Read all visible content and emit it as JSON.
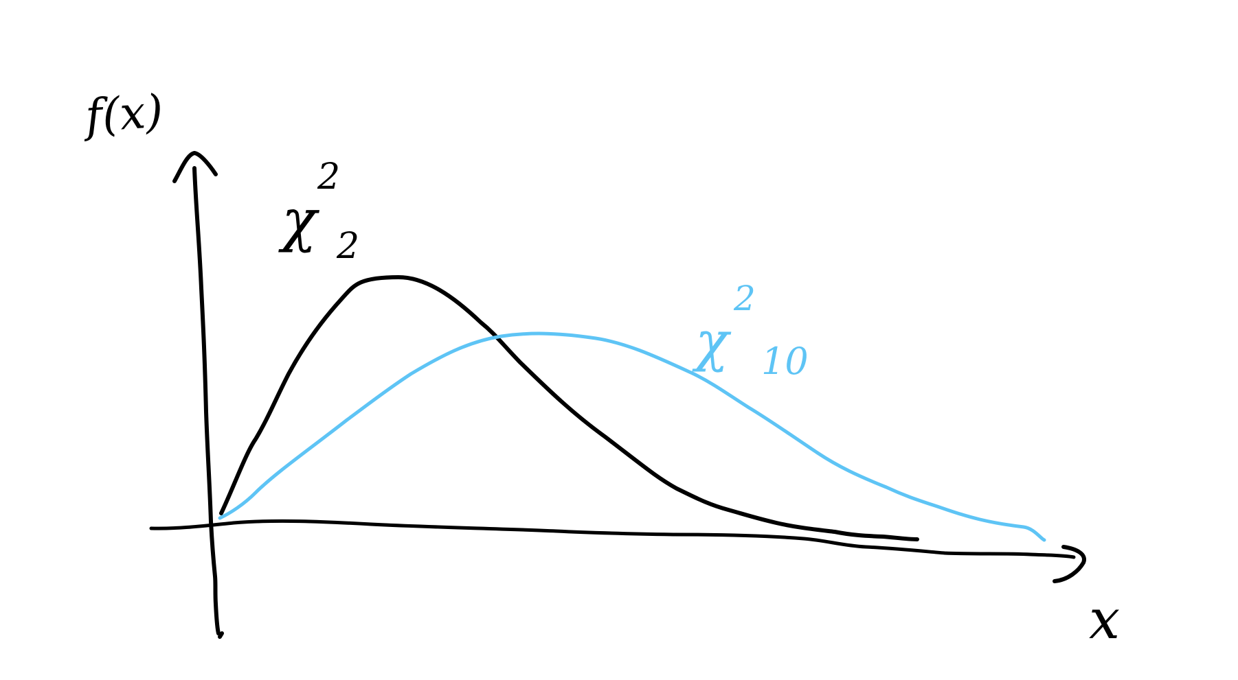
{
  "diagram": {
    "type": "hand-drawn sketch of two probability density curves",
    "y_axis_label": "f(x)",
    "x_axis_label": "x",
    "curves": [
      {
        "label": "χ²₂",
        "main": "χ",
        "sup": "2",
        "sub": "2",
        "color": "#000000"
      },
      {
        "label": "χ²₁₀",
        "main": "χ",
        "sup": "2",
        "sub": "10",
        "color": "#5ec4f5"
      }
    ]
  }
}
